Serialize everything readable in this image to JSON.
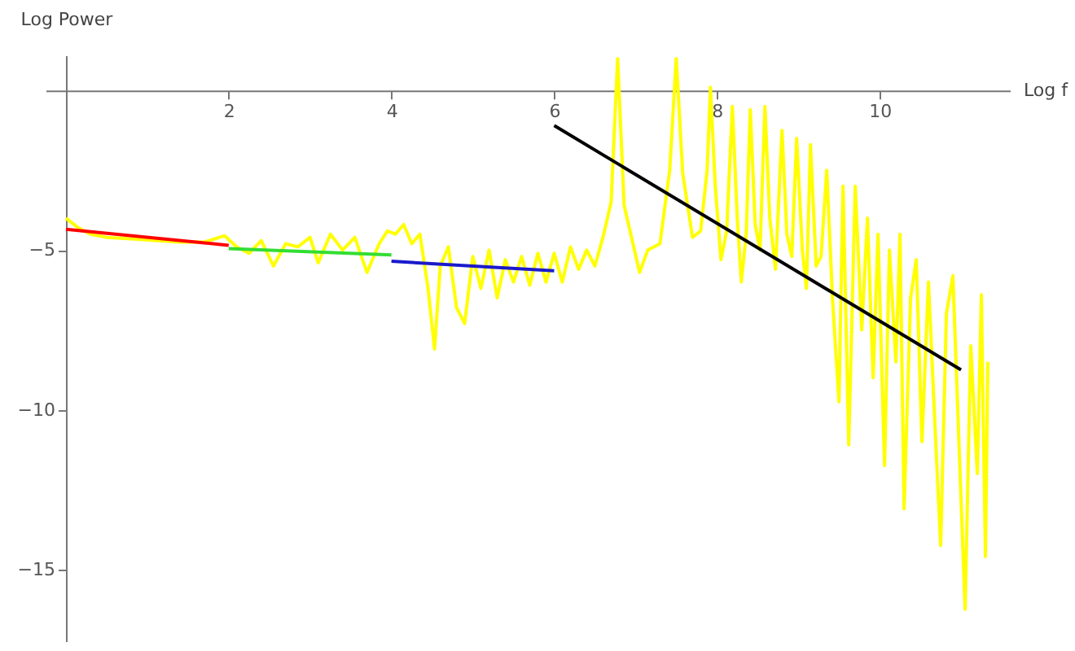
{
  "chart_data": {
    "type": "line",
    "xlabel": "Log f",
    "ylabel": "Log Power",
    "xlim": [
      -0.25,
      11.6
    ],
    "ylim": [
      -17.25,
      1.1
    ],
    "xticks": [
      2,
      4,
      6,
      8,
      10
    ],
    "yticks": [
      -5,
      -10,
      -15
    ],
    "legend": false,
    "grid": false,
    "line_style": "solid",
    "marker": "none",
    "series": [
      {
        "color": "#ffff00",
        "x": [
          0,
          0.15,
          0.3,
          0.5,
          0.8,
          1.1,
          1.4,
          1.7,
          1.95,
          2.1,
          2.25,
          2.4,
          2.55,
          2.7,
          2.85,
          3.0,
          3.1,
          3.25,
          3.4,
          3.55,
          3.7,
          3.85,
          3.95,
          4.05,
          4.15,
          4.25,
          4.35,
          4.45,
          4.53,
          4.6,
          4.7,
          4.8,
          4.9,
          5.0,
          5.1,
          5.2,
          5.3,
          5.4,
          5.5,
          5.6,
          5.7,
          5.8,
          5.9,
          6.0,
          6.1,
          6.2,
          6.3,
          6.4,
          6.5,
          6.6,
          6.7,
          6.78,
          6.86,
          6.95,
          7.05,
          7.15,
          7.3,
          7.42,
          7.5,
          7.58,
          7.7,
          7.8,
          7.88,
          7.92,
          7.98,
          8.05,
          8.12,
          8.19,
          8.25,
          8.3,
          8.36,
          8.41,
          8.47,
          8.53,
          8.59,
          8.65,
          8.72,
          8.8,
          8.86,
          8.92,
          8.98,
          9.05,
          9.1,
          9.15,
          9.22,
          9.28,
          9.35,
          9.42,
          9.5,
          9.55,
          9.62,
          9.7,
          9.78,
          9.85,
          9.92,
          9.98,
          10.06,
          10.12,
          10.2,
          10.25,
          10.3,
          10.38,
          10.45,
          10.52,
          10.6,
          10.68,
          10.75,
          10.82,
          10.9,
          10.96,
          11.05,
          11.12,
          11.2,
          11.25,
          11.3,
          11.33
        ],
        "values": [
          -4.0,
          -4.3,
          -4.5,
          -4.6,
          -4.65,
          -4.7,
          -4.75,
          -4.75,
          -4.55,
          -4.9,
          -5.1,
          -4.7,
          -5.5,
          -4.8,
          -4.9,
          -4.6,
          -5.4,
          -4.5,
          -5.0,
          -4.6,
          -5.7,
          -4.8,
          -4.4,
          -4.5,
          -4.2,
          -4.8,
          -4.5,
          -6.2,
          -8.1,
          -5.5,
          -4.9,
          -6.8,
          -7.3,
          -5.2,
          -6.2,
          -5.0,
          -6.5,
          -5.3,
          -6.0,
          -5.2,
          -6.1,
          -5.1,
          -6.0,
          -5.1,
          -6.0,
          -4.9,
          -5.6,
          -5.0,
          -5.5,
          -4.6,
          -3.5,
          1.0,
          -3.6,
          -4.6,
          -5.7,
          -5.0,
          -4.8,
          -2.5,
          1.0,
          -2.6,
          -4.6,
          -4.4,
          -2.5,
          0.1,
          -3.0,
          -5.3,
          -4.4,
          -0.5,
          -4.0,
          -6.0,
          -4.5,
          -0.6,
          -4.2,
          -5.0,
          -0.5,
          -4.0,
          -5.6,
          -1.25,
          -4.5,
          -5.2,
          -1.5,
          -5.0,
          -6.2,
          -1.7,
          -5.5,
          -5.2,
          -2.5,
          -6.5,
          -9.75,
          -3.0,
          -11.1,
          -3.0,
          -7.5,
          -4.0,
          -9.0,
          -4.5,
          -11.75,
          -5.0,
          -8.5,
          -4.5,
          -13.1,
          -6.5,
          -5.3,
          -11.0,
          -6.0,
          -10.5,
          -14.25,
          -7.0,
          -5.8,
          -10.0,
          -16.25,
          -8.0,
          -12.0,
          -6.4,
          -14.6,
          -8.5
        ]
      },
      {
        "color": "#ff0000",
        "x": [
          0,
          2
        ],
        "values": [
          -4.35,
          -4.85
        ]
      },
      {
        "color": "#33dd33",
        "x": [
          2,
          4
        ],
        "values": [
          -4.95,
          -5.15
        ]
      },
      {
        "color": "#1a1acc",
        "x": [
          4,
          6
        ],
        "values": [
          -5.35,
          -5.65
        ]
      },
      {
        "color": "#000000",
        "x": [
          6,
          11
        ],
        "values": [
          -1.1,
          -8.75
        ]
      }
    ]
  }
}
